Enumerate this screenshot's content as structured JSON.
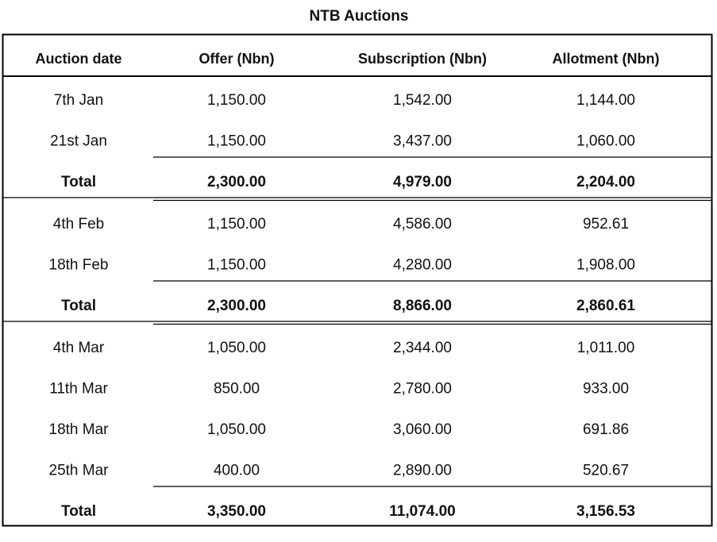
{
  "title": "NTB Auctions",
  "table": {
    "header": [
      "Auction date",
      "Offer (Nbn)",
      "Subscription (Nbn)",
      "Allotment (Nbn)"
    ],
    "groups": [
      {
        "rows": [
          [
            "7th Jan",
            "1,150.00",
            "1,542.00",
            "1,144.00"
          ],
          [
            "21st Jan",
            "1,150.00",
            "3,437.00",
            "1,060.00"
          ]
        ],
        "total": [
          "Total",
          "2,300.00",
          "4,979.00",
          "2,204.00"
        ]
      },
      {
        "rows": [
          [
            "4th Feb",
            "1,150.00",
            "4,586.00",
            "952.61"
          ],
          [
            "18th Feb",
            "1,150.00",
            "4,280.00",
            "1,908.00"
          ]
        ],
        "total": [
          "Total",
          "2,300.00",
          "8,866.00",
          "2,860.61"
        ]
      },
      {
        "rows": [
          [
            "4th Mar",
            "1,050.00",
            "2,344.00",
            "1,011.00"
          ],
          [
            "11th Mar",
            "850.00",
            "2,780.00",
            "933.00"
          ],
          [
            "18th Mar",
            "1,050.00",
            "3,060.00",
            "691.86"
          ],
          [
            "25th Mar",
            "400.00",
            "2,890.00",
            "520.67"
          ]
        ],
        "total": [
          "Total",
          "3,350.00",
          "11,074.00",
          "3,156.53"
        ]
      }
    ]
  }
}
